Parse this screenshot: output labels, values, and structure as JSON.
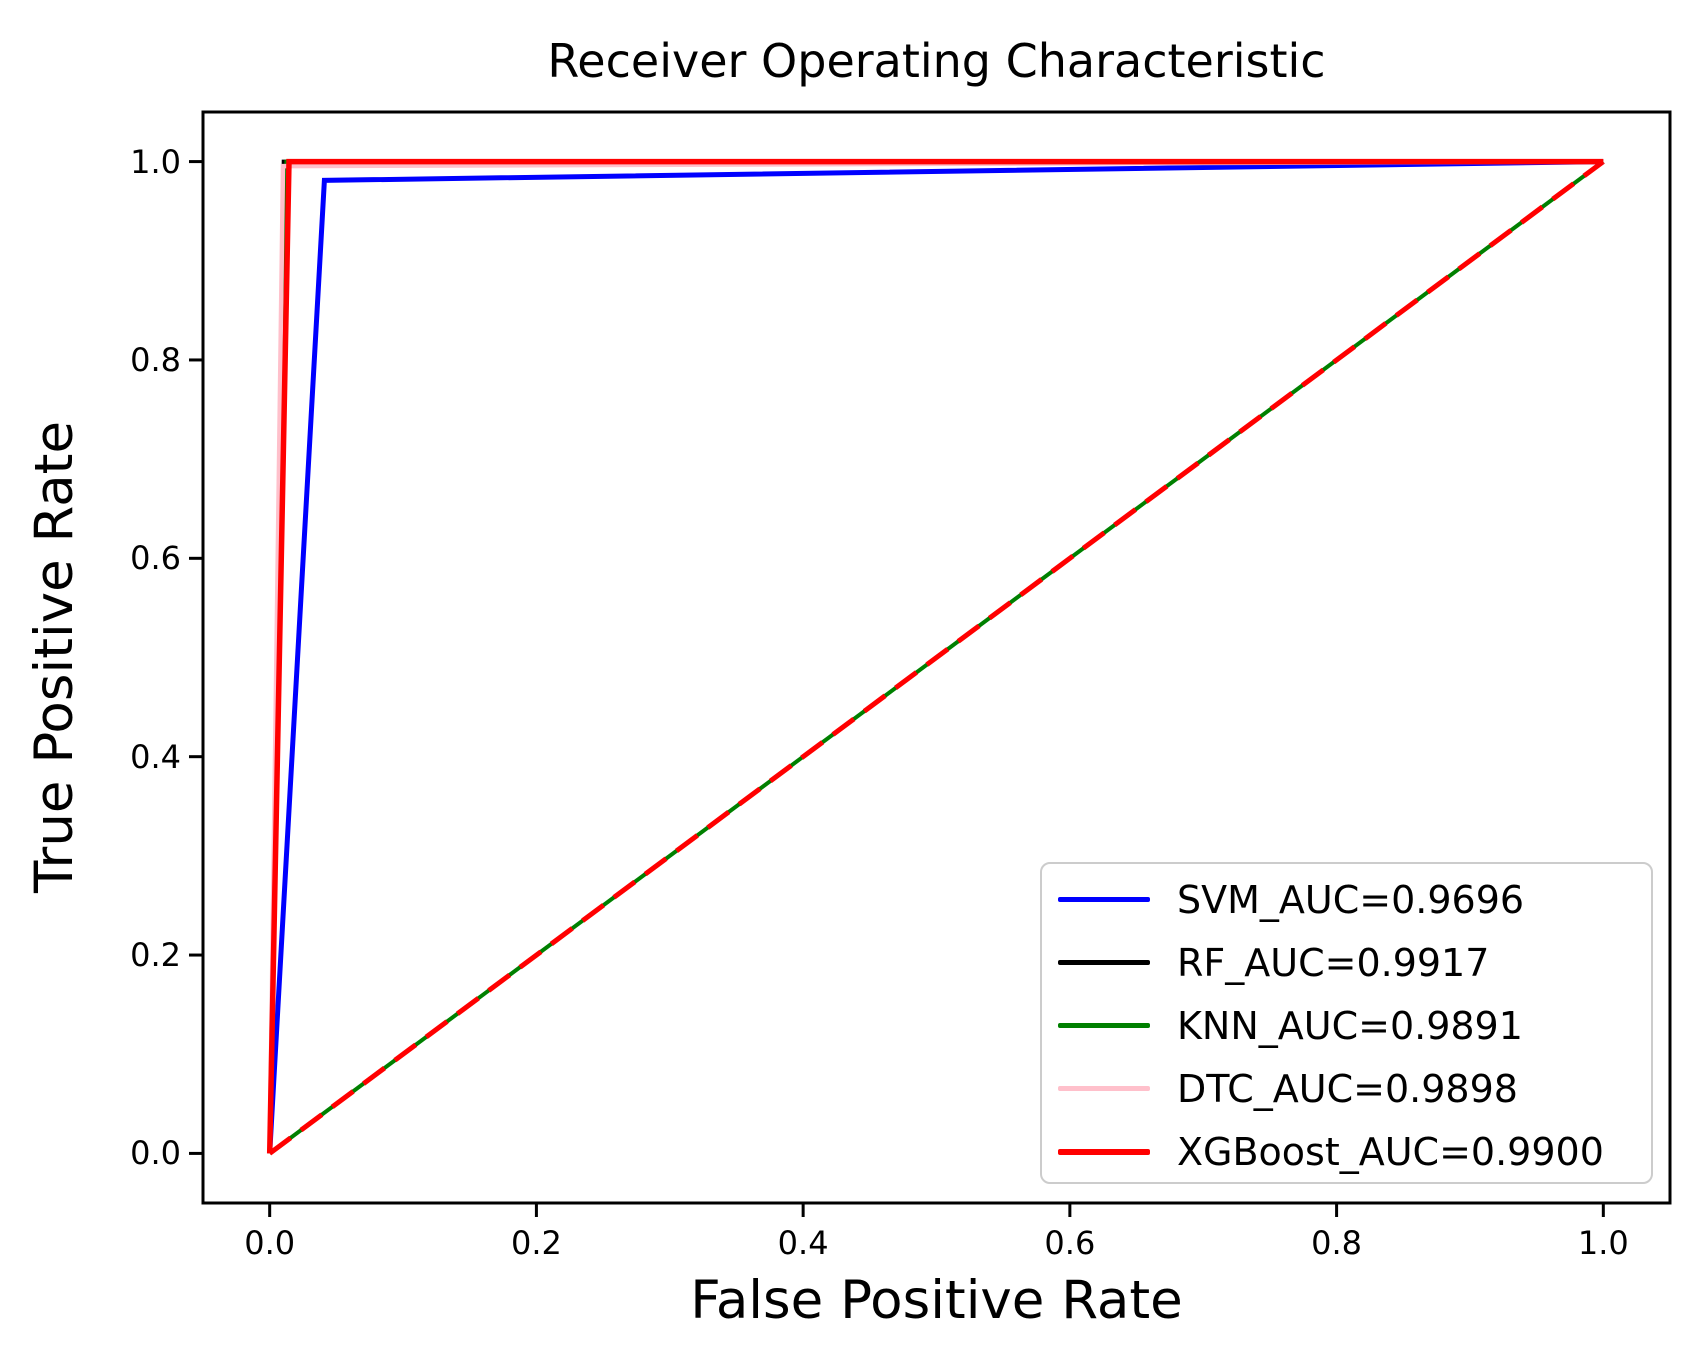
{
  "colors": {
    "background": "#ffffff",
    "text": "#000000",
    "spine": "#000000",
    "legend_border": "#cccccc"
  },
  "chart_data": {
    "type": "line",
    "title": "Receiver Operating Characteristic",
    "xlabel": "False Positive Rate",
    "ylabel": "True Positive Rate",
    "xlim": [
      -0.05,
      1.05
    ],
    "ylim": [
      -0.05,
      1.05
    ],
    "xticks": [
      0.0,
      0.2,
      0.4,
      0.6,
      0.8,
      1.0
    ],
    "yticks": [
      0.0,
      0.2,
      0.4,
      0.6,
      0.8,
      1.0
    ],
    "xtick_labels": [
      "0.0",
      "0.2",
      "0.4",
      "0.6",
      "0.8",
      "1.0"
    ],
    "ytick_labels": [
      "0.0",
      "0.2",
      "0.4",
      "0.6",
      "0.8",
      "1.0"
    ],
    "grid": false,
    "legend": {
      "position": "lower right",
      "entries": [
        {
          "label": "SVM_AUC=0.9696",
          "color": "#0000ff",
          "line_width": 5
        },
        {
          "label": "RF_AUC=0.9917",
          "color": "#000000",
          "line_width": 5
        },
        {
          "label": "KNN_AUC=0.9891",
          "color": "#008000",
          "line_width": 5
        },
        {
          "label": "DTC_AUC=0.9898",
          "color": "#ffc0cb",
          "line_width": 5
        },
        {
          "label": "XGBoost_AUC=0.9900",
          "color": "#ff0000",
          "line_width": 6
        }
      ]
    },
    "series": [
      {
        "name": "SVM",
        "auc": "0.9696",
        "color": "#0000ff",
        "width": 5,
        "dash": null,
        "points": [
          [
            0,
            0
          ],
          [
            0.041,
            0.981
          ],
          [
            1,
            1
          ]
        ]
      },
      {
        "name": "RF",
        "auc": "0.9917",
        "color": "#000000",
        "width": 4,
        "dash": null,
        "points": [
          [
            0,
            0
          ],
          [
            0.0105,
            1.0
          ],
          [
            1,
            1
          ]
        ]
      },
      {
        "name": "KNN",
        "auc": "0.9891",
        "color": "#008000",
        "width": 4,
        "dash": null,
        "points": [
          [
            0,
            0
          ],
          [
            0.0125,
            1.0
          ],
          [
            1,
            1
          ]
        ]
      },
      {
        "name": "DTC",
        "auc": "0.9898",
        "color": "#ffc0cb",
        "width": 4.5,
        "dash": null,
        "points": [
          [
            0,
            0
          ],
          [
            0.01,
            0.9955
          ],
          [
            1,
            1
          ]
        ]
      },
      {
        "name": "XGBoost",
        "auc": "0.9900",
        "color": "#ff0000",
        "width": 5.5,
        "dash": null,
        "points": [
          [
            0,
            0
          ],
          [
            0.0145,
            1.0
          ],
          [
            1,
            1
          ]
        ]
      }
    ],
    "reference_lines": [
      {
        "name": "chance-line-green",
        "color": "#008000",
        "width": 4,
        "dash": null,
        "points": [
          [
            0,
            0
          ],
          [
            1,
            1
          ]
        ]
      },
      {
        "name": "chance-line-red-dashed",
        "color": "#ff0000",
        "width": 5,
        "dash": [
          26,
          13
        ],
        "points": [
          [
            0,
            0
          ],
          [
            1,
            1
          ]
        ]
      }
    ]
  }
}
